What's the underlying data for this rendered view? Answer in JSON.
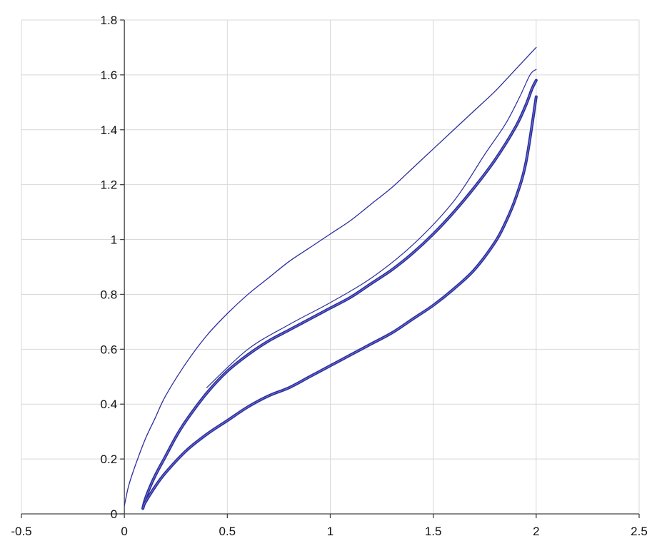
{
  "chart_data": {
    "type": "line",
    "title": "",
    "xlabel": "",
    "ylabel": "",
    "xlim": [
      -0.5,
      2.5
    ],
    "ylim": [
      0,
      1.8
    ],
    "grid": true,
    "legend": "none",
    "x_ticks": [
      -0.5,
      0,
      0.5,
      1,
      1.5,
      2,
      2.5
    ],
    "x_tick_labels": [
      "-0.5",
      "0",
      "0.5",
      "1",
      "1.5",
      "2",
      "2.5"
    ],
    "y_ticks": [
      0,
      0.2,
      0.4,
      0.6,
      0.8,
      1,
      1.2,
      1.4,
      1.6,
      1.8
    ],
    "y_tick_labels": [
      "0",
      "0.2",
      "0.4",
      "0.6",
      "0.8",
      "1",
      "1.2",
      "1.4",
      "1.6",
      "1.8"
    ],
    "colors": {
      "series": "#2b2d9e",
      "series_inner": "#7f84d4",
      "grid": "#d9d9d9",
      "axis": "#444444"
    },
    "series": [
      {
        "id": "first-loading",
        "width": 1.3,
        "x": [
          0.0,
          0.02,
          0.05,
          0.1,
          0.15,
          0.2,
          0.3,
          0.4,
          0.5,
          0.6,
          0.7,
          0.8,
          0.9,
          1.0,
          1.1,
          1.2,
          1.3,
          1.4,
          1.5,
          1.6,
          1.7,
          1.8,
          1.9,
          1.95,
          2.0
        ],
        "y": [
          0.03,
          0.1,
          0.17,
          0.27,
          0.35,
          0.43,
          0.55,
          0.65,
          0.73,
          0.8,
          0.86,
          0.92,
          0.97,
          1.02,
          1.07,
          1.13,
          1.19,
          1.26,
          1.33,
          1.4,
          1.47,
          1.54,
          1.62,
          1.66,
          1.7
        ]
      },
      {
        "id": "unloading-upper-branch",
        "width": 4,
        "x": [
          2.0,
          1.98,
          1.95,
          1.9,
          1.8,
          1.7,
          1.6,
          1.5,
          1.4,
          1.3,
          1.2,
          1.1,
          1.0,
          0.9,
          0.8,
          0.7,
          0.6,
          0.5,
          0.4,
          0.3,
          0.25,
          0.2,
          0.15,
          0.12,
          0.1,
          0.09
        ],
        "y": [
          1.58,
          1.55,
          1.49,
          1.41,
          1.29,
          1.19,
          1.1,
          1.02,
          0.95,
          0.89,
          0.84,
          0.79,
          0.75,
          0.71,
          0.67,
          0.63,
          0.58,
          0.52,
          0.44,
          0.34,
          0.28,
          0.21,
          0.14,
          0.09,
          0.05,
          0.02
        ]
      },
      {
        "id": "reloading-lower-branch",
        "width": 4,
        "x": [
          0.09,
          0.1,
          0.15,
          0.2,
          0.3,
          0.4,
          0.5,
          0.6,
          0.7,
          0.8,
          0.9,
          1.0,
          1.1,
          1.2,
          1.3,
          1.4,
          1.5,
          1.6,
          1.7,
          1.8,
          1.85,
          1.9,
          1.95,
          2.0
        ],
        "y": [
          0.02,
          0.04,
          0.1,
          0.15,
          0.23,
          0.29,
          0.34,
          0.39,
          0.43,
          0.46,
          0.5,
          0.54,
          0.58,
          0.62,
          0.66,
          0.71,
          0.76,
          0.82,
          0.89,
          0.99,
          1.06,
          1.15,
          1.28,
          1.52
        ]
      },
      {
        "id": "unloading-outer-trace",
        "width": 1.2,
        "x": [
          2.0,
          1.97,
          1.92,
          1.85,
          1.75,
          1.6,
          1.4,
          1.2,
          1.0,
          0.8,
          0.6,
          0.4
        ],
        "y": [
          1.62,
          1.6,
          1.52,
          1.42,
          1.31,
          1.14,
          0.98,
          0.86,
          0.77,
          0.69,
          0.6,
          0.46
        ]
      }
    ]
  }
}
